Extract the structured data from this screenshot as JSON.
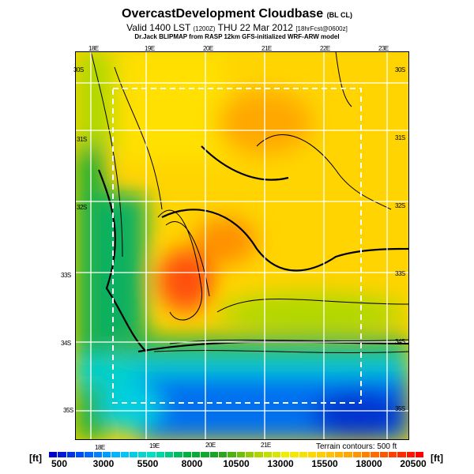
{
  "header": {
    "title": "OvercastDevelopment Cloudbase",
    "title_suffix": "(BL CL)",
    "valid": "Valid 1400 LST",
    "valid_z": "(1200Z)",
    "valid_date": "THU 22 Mar 2012",
    "forecast": "[18hrFcst@0600z]",
    "credit": "Dr.Jack BLIPMAP from RASP 12km GFS-initialized WRF-ARW model"
  },
  "map": {
    "lon_labels_top": [
      "18E",
      "19E",
      "20E",
      "21E",
      "22E",
      "23E"
    ],
    "lon_labels_bottom": [
      "18E",
      "19E",
      "20E",
      "21E"
    ],
    "lat_labels": [
      "30S",
      "31S",
      "32S",
      "33S",
      "34S",
      "35S"
    ],
    "terrain_note": "Terrain contours: 500 ft"
  },
  "colorbar": {
    "unit": "[ft]",
    "ticks": [
      "500",
      "3000",
      "5500",
      "8000",
      "10500",
      "13000",
      "15500",
      "18000",
      "20500"
    ],
    "colors": [
      "#0000cc",
      "#0060ff",
      "#00c0ff",
      "#00e0c0",
      "#00b040",
      "#20a020",
      "#a0d000",
      "#f0f000",
      "#ffd000",
      "#ffa000",
      "#ff5000",
      "#ff0000"
    ]
  }
}
